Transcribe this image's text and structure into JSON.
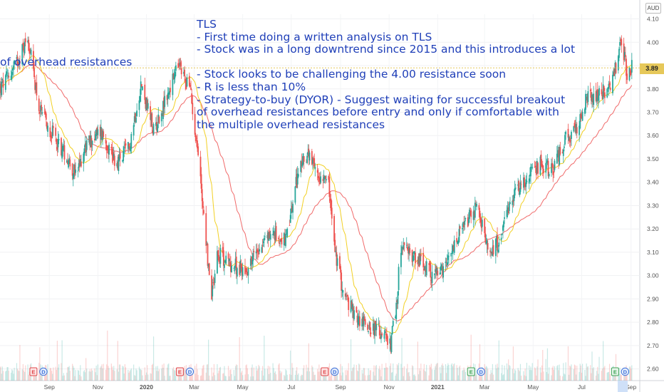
{
  "annotation": {
    "lines": [
      "TLS",
      "- First time doing a written analysis on TLS",
      "- Stock was in a long downtrend since 2015 and this introduces a lot",
      "of overhead resistances",
      "- Stock looks to be challenging the 4.00 resistance soon",
      "- R is less than 10%",
      "- Strategy-to-buy (DYOR) - Suggest waiting for successful breakout",
      "of overhead resistances before entry and only if comfortable with",
      "the multiple overhead resistances"
    ]
  },
  "ui": {
    "currency": "AUD",
    "last_price": "3.89"
  },
  "colors": {
    "up": "#26a69a",
    "down": "#ef5350",
    "ma_fast": "#f2d024",
    "ma_slow": "#f06a6a",
    "text": "#1f3fb8"
  },
  "chart_data": {
    "type": "candlestick",
    "title": "TLS",
    "currency": "AUD",
    "ylim": [
      2.55,
      4.12
    ],
    "yticks": [
      "2.60",
      "2.70",
      "2.80",
      "2.90",
      "3.00",
      "3.10",
      "3.20",
      "3.30",
      "3.40",
      "3.50",
      "3.60",
      "3.70",
      "3.80",
      "3.90",
      "4.00",
      "4.10"
    ],
    "xticks": [
      "Sep",
      "Nov",
      "2020",
      "Mar",
      "May",
      "Jul",
      "Sep",
      "Nov",
      "2021",
      "Mar",
      "May",
      "Jul",
      "Sep"
    ],
    "last_price": 3.89,
    "events": [
      {
        "label": "E",
        "type": "earnings",
        "date": "2019-08"
      },
      {
        "label": "D",
        "type": "dividend",
        "date": "2019-08"
      },
      {
        "label": "E",
        "type": "earnings",
        "date": "2020-02"
      },
      {
        "label": "D",
        "type": "dividend",
        "date": "2020-02"
      },
      {
        "label": "E",
        "type": "earnings",
        "date": "2020-08"
      },
      {
        "label": "D",
        "type": "dividend",
        "date": "2020-08"
      },
      {
        "label": "E",
        "type": "earnings",
        "date": "2021-02"
      },
      {
        "label": "D",
        "type": "dividend",
        "date": "2021-02"
      },
      {
        "label": "E",
        "type": "earnings",
        "date": "2021-08"
      },
      {
        "label": "D",
        "type": "dividend",
        "date": "2021-08"
      }
    ],
    "price_path": [
      [
        "2019-07-01",
        3.8
      ],
      [
        "2019-07-20",
        3.9
      ],
      [
        "2019-08-05",
        4.02
      ],
      [
        "2019-08-20",
        3.7
      ],
      [
        "2019-09-10",
        3.58
      ],
      [
        "2019-09-25",
        3.5
      ],
      [
        "2019-10-05",
        3.42
      ],
      [
        "2019-10-15",
        3.55
      ],
      [
        "2019-11-05",
        3.62
      ],
      [
        "2019-11-25",
        3.48
      ],
      [
        "2019-12-10",
        3.55
      ],
      [
        "2019-12-25",
        3.82
      ],
      [
        "2020-01-10",
        3.62
      ],
      [
        "2020-01-25",
        3.75
      ],
      [
        "2020-02-10",
        3.9
      ],
      [
        "2020-02-25",
        3.8
      ],
      [
        "2020-03-05",
        3.55
      ],
      [
        "2020-03-15",
        3.2
      ],
      [
        "2020-03-22",
        2.9
      ],
      [
        "2020-03-30",
        3.1
      ],
      [
        "2020-04-15",
        3.05
      ],
      [
        "2020-05-05",
        3.02
      ],
      [
        "2020-05-20",
        3.12
      ],
      [
        "2020-06-05",
        3.18
      ],
      [
        "2020-06-25",
        3.15
      ],
      [
        "2020-07-10",
        3.45
      ],
      [
        "2020-07-20",
        3.52
      ],
      [
        "2020-08-05",
        3.42
      ],
      [
        "2020-08-15",
        3.45
      ],
      [
        "2020-08-25",
        3.1
      ],
      [
        "2020-09-05",
        2.92
      ],
      [
        "2020-09-20",
        2.82
      ],
      [
        "2020-10-10",
        2.78
      ],
      [
        "2020-10-25",
        2.75
      ],
      [
        "2020-11-01",
        2.68
      ],
      [
        "2020-11-10",
        2.85
      ],
      [
        "2020-11-15",
        3.12
      ],
      [
        "2020-12-05",
        3.08
      ],
      [
        "2020-12-25",
        3.0
      ],
      [
        "2021-01-10",
        3.02
      ],
      [
        "2021-01-25",
        3.15
      ],
      [
        "2021-02-10",
        3.25
      ],
      [
        "2021-02-20",
        3.3
      ],
      [
        "2021-03-05",
        3.1
      ],
      [
        "2021-03-20",
        3.15
      ],
      [
        "2021-04-10",
        3.38
      ],
      [
        "2021-04-25",
        3.42
      ],
      [
        "2021-05-10",
        3.48
      ],
      [
        "2021-05-25",
        3.45
      ],
      [
        "2021-06-10",
        3.58
      ],
      [
        "2021-06-25",
        3.62
      ],
      [
        "2021-07-05",
        3.75
      ],
      [
        "2021-07-20",
        3.78
      ],
      [
        "2021-08-05",
        3.8
      ],
      [
        "2021-08-15",
        3.92
      ],
      [
        "2021-08-20",
        4.0
      ],
      [
        "2021-08-28",
        3.85
      ],
      [
        "2021-09-02",
        3.89
      ]
    ]
  }
}
